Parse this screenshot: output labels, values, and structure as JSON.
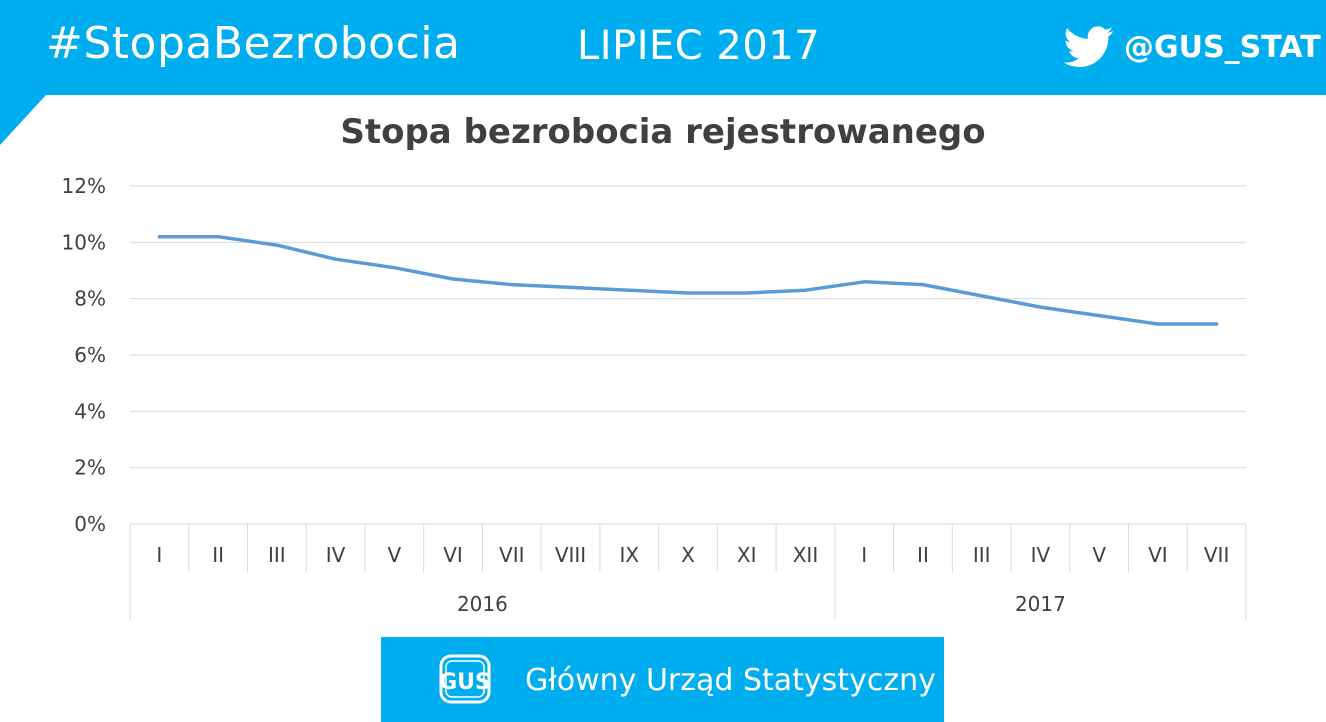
{
  "header": {
    "hashtag": "#StopaBezrobocia",
    "period": "LIPIEC 2017",
    "handle": "@GUS_STAT",
    "icon": "twitter-bird-icon"
  },
  "colors": {
    "brand": "#00aeef",
    "line": "#5b9bd5",
    "title": "#404040",
    "grid": "#d9d9d9"
  },
  "chart_data": {
    "type": "line",
    "title": "Stopa bezrobocia rejestrowanego",
    "xlabel": "",
    "ylabel": "",
    "y_ticks": [
      "0%",
      "2%",
      "4%",
      "6%",
      "8%",
      "10%",
      "12%"
    ],
    "ylim": [
      0,
      12
    ],
    "grid": true,
    "legend": "none",
    "categories": [
      "I",
      "II",
      "III",
      "IV",
      "V",
      "VI",
      "VII",
      "VIII",
      "IX",
      "X",
      "XI",
      "XII",
      "I",
      "II",
      "III",
      "IV",
      "V",
      "VI",
      "VII"
    ],
    "groups": [
      {
        "label": "2016",
        "count": 12
      },
      {
        "label": "2017",
        "count": 7
      }
    ],
    "series": [
      {
        "values": [
          10.2,
          10.2,
          9.9,
          9.4,
          9.1,
          8.7,
          8.5,
          8.4,
          8.3,
          8.2,
          8.2,
          8.3,
          8.6,
          8.5,
          8.1,
          7.7,
          7.4,
          7.1,
          7.1
        ]
      }
    ]
  },
  "footer": {
    "text": "Główny Urząd Statystyczny",
    "logo": "GUS",
    "logo_icon": "gus-logo-icon"
  }
}
